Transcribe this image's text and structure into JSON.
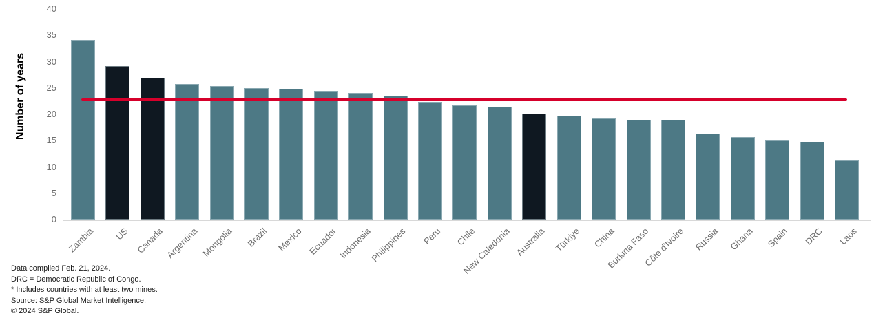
{
  "chart_data": {
    "type": "bar",
    "title": "",
    "ylabel": "Number of years",
    "xlabel": "",
    "ylim": [
      0,
      40
    ],
    "yticks": [
      0,
      5,
      10,
      15,
      20,
      25,
      30,
      35,
      40
    ],
    "grid": false,
    "legend_position": "none",
    "categories": [
      "Zambia",
      "US",
      "Canada",
      "Argentina",
      "Mongolia",
      "Brazil",
      "Mexico",
      "Ecuador",
      "Indonesia",
      "Philippines",
      "Peru",
      "Chile",
      "New Caledonia",
      "Australia",
      "Türkiye",
      "China",
      "Burkina Faso",
      "Côte d'Ivoire",
      "Russia",
      "Ghana",
      "Spain",
      "DRC",
      "Laos"
    ],
    "values": [
      34.1,
      29.1,
      26.9,
      25.7,
      25.4,
      25.0,
      24.8,
      24.5,
      24.1,
      23.6,
      22.4,
      21.7,
      21.5,
      20.2,
      19.7,
      19.2,
      19.0,
      19.0,
      16.4,
      15.7,
      15.0,
      14.8,
      11.3
    ],
    "highlighted_categories": [
      "US",
      "Canada",
      "Australia"
    ],
    "reference_line": {
      "value": 22.8
    }
  },
  "colors": {
    "bar_default": "#4D7985",
    "bar_highlight": "#0F1821",
    "reference_line": "#D6002B",
    "axis_line": "#D8D8D8",
    "tick_text": "#6E6E6E",
    "category_text": "#6E6E6E",
    "footnote_text": "#1A1A1A"
  },
  "footnotes": [
    "Data compiled Feb. 21, 2024.",
    "DRC = Democratic Republic of Congo.",
    "* Includes countries with at least two mines.",
    "Source: S&P Global Market Intelligence.",
    "© 2024 S&P Global."
  ]
}
